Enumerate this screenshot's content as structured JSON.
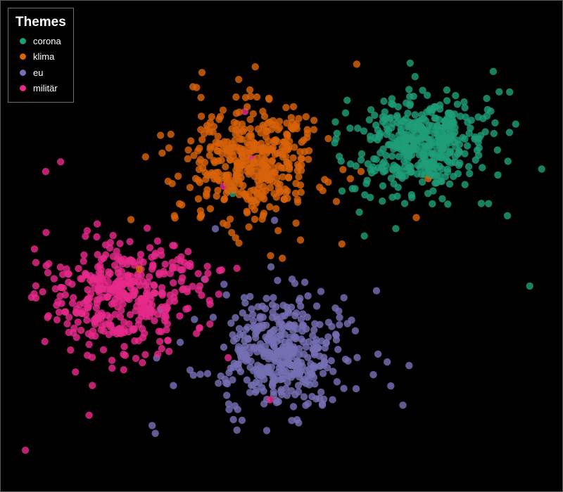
{
  "chart_data": {
    "type": "scatter",
    "title": "",
    "xlabel": "",
    "ylabel": "",
    "xlim": [
      0,
      100
    ],
    "ylim": [
      0,
      100
    ],
    "grid": false,
    "axes_visible": false,
    "background": "#000000",
    "legend": {
      "title": "Themes",
      "placement": "top-left",
      "entries": [
        "corona",
        "klima",
        "eu",
        "militär"
      ]
    },
    "series": [
      {
        "name": "corona",
        "color": "#1f9e77",
        "center": [
          76,
          71
        ],
        "spread": [
          9,
          8.5
        ],
        "count": 400,
        "outliers": 40
      },
      {
        "name": "klima",
        "color": "#d8630a",
        "center": [
          44,
          69
        ],
        "spread": [
          10,
          9.5
        ],
        "count": 380,
        "outliers": 40
      },
      {
        "name": "eu",
        "color": "#7570b3",
        "center": [
          50,
          27
        ],
        "spread": [
          9.5,
          9
        ],
        "count": 380,
        "outliers": 40
      },
      {
        "name": "militär",
        "color": "#e7298a",
        "center": [
          21,
          39
        ],
        "spread": [
          11,
          9.5
        ],
        "count": 380,
        "outliers": 45
      }
    ]
  }
}
